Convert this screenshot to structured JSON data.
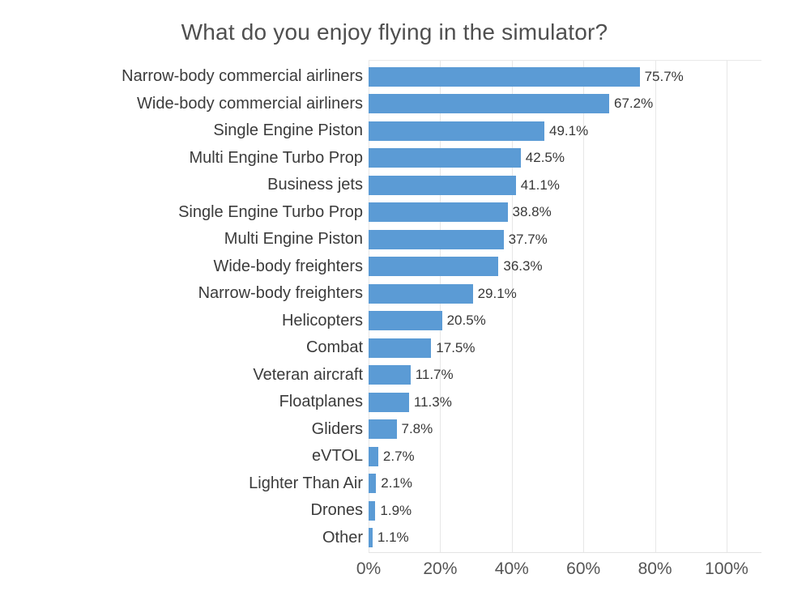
{
  "title": "What do you enjoy flying in the simulator?",
  "chart_data": {
    "type": "bar",
    "orientation": "horizontal",
    "title": "What do you enjoy flying in the simulator?",
    "xlabel": "",
    "ylabel": "",
    "xlim": [
      0,
      100
    ],
    "grid": true,
    "legend": "none",
    "categories": [
      "Narrow-body commercial airliners",
      "Wide-body commercial airliners",
      "Single Engine Piston",
      "Multi Engine Turbo Prop",
      "Business jets",
      "Single Engine Turbo Prop",
      "Multi Engine Piston",
      "Wide-body freighters",
      "Narrow-body freighters",
      "Helicopters",
      "Combat",
      "Veteran aircraft",
      "Floatplanes",
      "Gliders",
      "eVTOL",
      "Lighter Than Air",
      "Drones",
      "Other"
    ],
    "values": [
      75.7,
      67.2,
      49.1,
      42.5,
      41.1,
      38.8,
      37.7,
      36.3,
      29.1,
      20.5,
      17.5,
      11.7,
      11.3,
      7.8,
      2.7,
      2.1,
      1.9,
      1.1
    ],
    "value_labels": [
      "75.7%",
      "67.2%",
      "49.1%",
      "42.5%",
      "41.1%",
      "38.8%",
      "37.7%",
      "36.3%",
      "29.1%",
      "20.5%",
      "17.5%",
      "11.7%",
      "11.3%",
      "7.8%",
      "2.7%",
      "2.1%",
      "1.9%",
      "1.1%"
    ],
    "x_tick_values": [
      0,
      20,
      40,
      60,
      80,
      100
    ],
    "x_tick_labels": [
      "0%",
      "20%",
      "40%",
      "60%",
      "80%",
      "100%"
    ]
  },
  "colors": {
    "bar": "#5b9bd5",
    "gridline": "#e7e7e7",
    "title_text": "#4f4f4f",
    "category_text": "#3b3b3b",
    "value_text": "#383838",
    "axis_text": "#555555"
  }
}
